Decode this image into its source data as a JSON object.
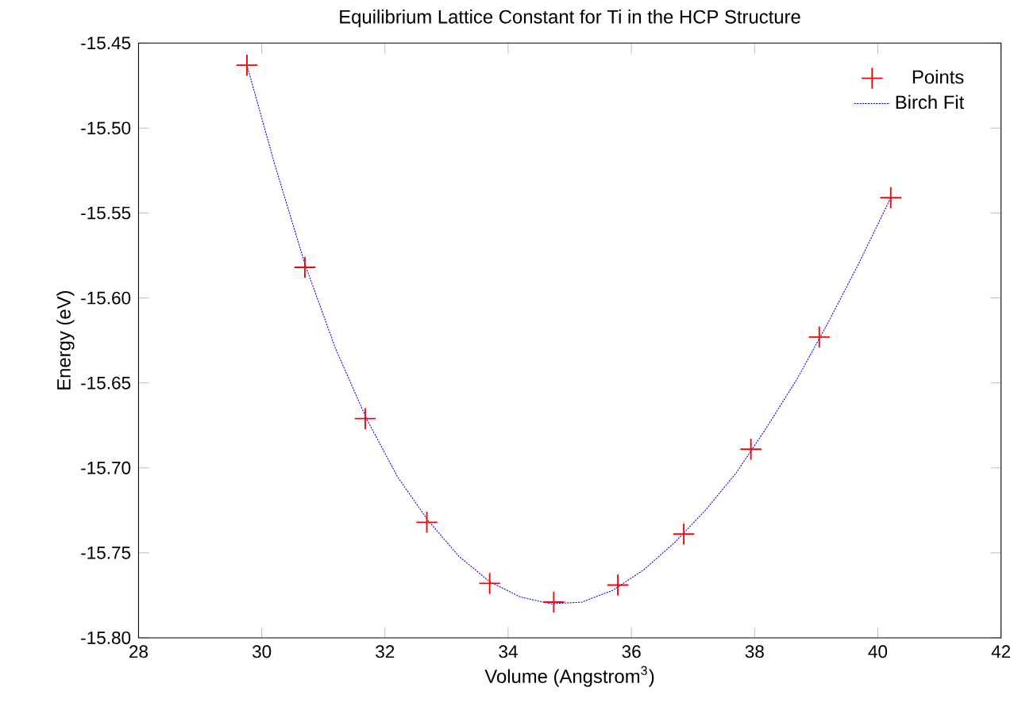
{
  "chart_data": {
    "type": "scatter",
    "title": "Equilibrium Lattice Constant for Ti in the HCP Structure",
    "xlabel": "Volume (Angstrom$^{3}$)",
    "ylabel": "Energy (eV)",
    "xlim": [
      28,
      42
    ],
    "xticks": [
      28,
      30,
      32,
      34,
      36,
      38,
      40,
      42
    ],
    "ylim": [
      -15.8,
      -15.45
    ],
    "yticks": [
      {
        "value": -15.8,
        "label": "-15.80"
      },
      {
        "value": -15.75,
        "label": "-15.75"
      },
      {
        "value": -15.7,
        "label": "-15.70"
      },
      {
        "value": -15.65,
        "label": "-15.65"
      },
      {
        "value": -15.6,
        "label": "-15.60"
      },
      {
        "value": -15.55,
        "label": "-15.55"
      },
      {
        "value": -15.5,
        "label": "-15.50"
      },
      {
        "value": -15.45,
        "label": "-15.45"
      }
    ],
    "grid": false,
    "legend": "top right",
    "series": [
      {
        "name": "Points",
        "marker": "cross",
        "color": "#ff0000",
        "x": [
          29.76,
          30.7,
          31.68,
          32.68,
          33.7,
          34.74,
          35.78,
          36.85,
          37.94,
          39.05,
          40.21
        ],
        "values": [
          -15.463,
          -15.582,
          -15.671,
          -15.732,
          -15.768,
          -15.779,
          -15.769,
          -15.739,
          -15.689,
          -15.623,
          -15.541
        ]
      },
      {
        "name": "Birch Fit",
        "type": "line",
        "marker": "none",
        "line_style": "dotted",
        "color": "#0000ff",
        "x": [
          29.76,
          30.2,
          30.7,
          31.2,
          31.7,
          32.2,
          32.7,
          33.2,
          33.7,
          34.2,
          34.7,
          35.2,
          35.7,
          36.2,
          36.7,
          37.2,
          37.7,
          38.2,
          38.7,
          39.2,
          39.7,
          40.21
        ],
        "values": [
          -15.463,
          -15.52,
          -15.58,
          -15.63,
          -15.671,
          -15.705,
          -15.731,
          -15.752,
          -15.767,
          -15.776,
          -15.78,
          -15.779,
          -15.772,
          -15.76,
          -15.744,
          -15.725,
          -15.703,
          -15.676,
          -15.647,
          -15.614,
          -15.579,
          -15.541
        ]
      }
    ]
  }
}
